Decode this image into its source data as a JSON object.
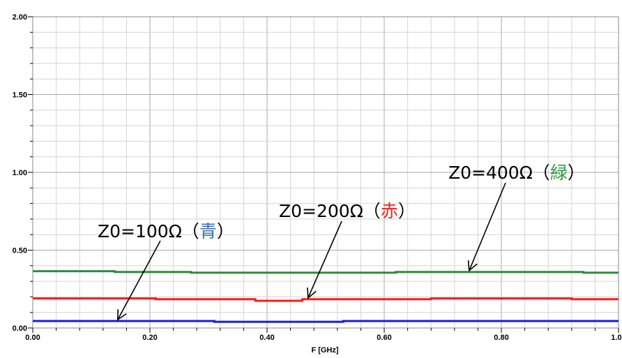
{
  "chart_data": {
    "type": "line",
    "title": "",
    "xlabel": "F [GHz]",
    "ylabel": "",
    "xlim": [
      0,
      1
    ],
    "ylim": [
      0,
      2
    ],
    "grid": true,
    "x_ticks": [
      "0.00",
      "0.20",
      "0.40",
      "0.60",
      "0.80",
      "1.00"
    ],
    "y_ticks": [
      "0.00",
      "0.50",
      "1.00",
      "1.50",
      "2.00"
    ],
    "series": [
      {
        "color": "#2e8b3e",
        "x": [
          0.0,
          0.14,
          0.14,
          0.27,
          0.27,
          0.62,
          0.62,
          0.94,
          0.94,
          1.0
        ],
        "y": [
          0.365,
          0.365,
          0.36,
          0.36,
          0.355,
          0.355,
          0.36,
          0.36,
          0.355,
          0.355
        ]
      },
      {
        "color": "#ff1a1a",
        "x": [
          0.0,
          0.21,
          0.21,
          0.38,
          0.38,
          0.46,
          0.46,
          0.68,
          0.68,
          0.92,
          0.92,
          1.0
        ],
        "y": [
          0.19,
          0.19,
          0.185,
          0.185,
          0.175,
          0.175,
          0.185,
          0.185,
          0.19,
          0.19,
          0.185,
          0.185
        ]
      },
      {
        "color": "#1a1aee",
        "x": [
          0.0,
          0.31,
          0.31,
          0.53,
          0.53,
          1.0
        ],
        "y": [
          0.045,
          0.045,
          0.04,
          0.04,
          0.045,
          0.045
        ]
      }
    ],
    "annotations": [
      {
        "prefix": "Z0=100Ω（",
        "kanji": "青",
        "suffix": "）",
        "kanji_color": "#3a6fb0",
        "points_to": [
          0.145,
          0.04
        ]
      },
      {
        "prefix": "Z0=200Ω（",
        "kanji": "赤",
        "suffix": "）",
        "kanji_color": "#ff1a1a",
        "points_to": [
          0.47,
          0.18
        ]
      },
      {
        "prefix": "Z0=400Ω（",
        "kanji": "緑",
        "suffix": "）",
        "kanji_color": "#2e9b3e",
        "points_to": [
          0.745,
          0.355
        ]
      }
    ]
  }
}
